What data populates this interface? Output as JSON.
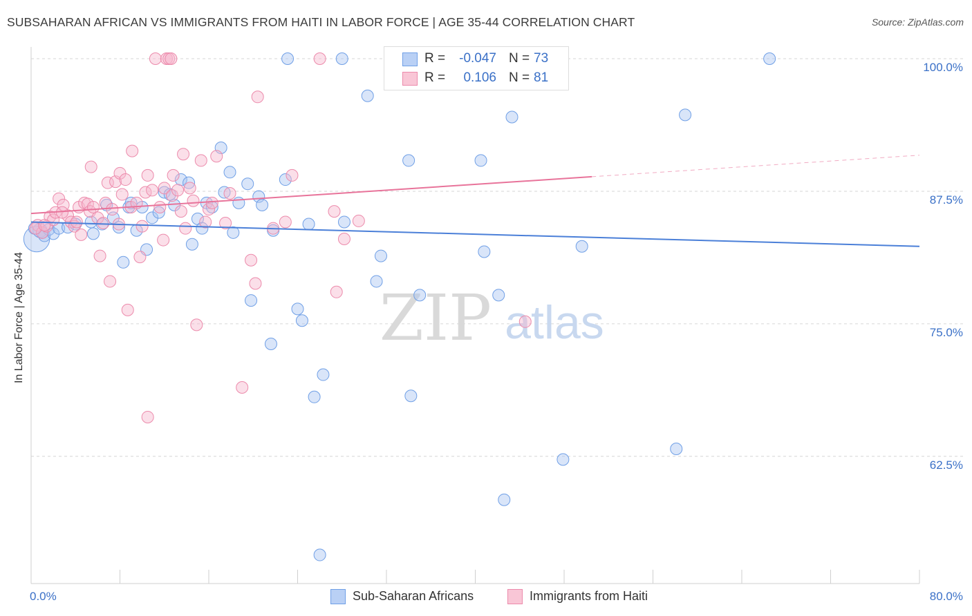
{
  "header": {
    "title": "SUBSAHARAN AFRICAN VS IMMIGRANTS FROM HAITI IN LABOR FORCE | AGE 35-44 CORRELATION CHART",
    "source": "Source: ZipAtlas.com"
  },
  "watermark": {
    "zip": "ZIP",
    "atlas": "atlas"
  },
  "stats": [
    {
      "r_label": "R =",
      "r_value": "-0.047",
      "n_label": "N =",
      "n_value": "73",
      "color": "#6f9fe6",
      "fill": "#b9d0f5"
    },
    {
      "r_label": "R =",
      "r_value": "0.106",
      "n_label": "N =",
      "n_value": "81",
      "color": "#ec8aab",
      "fill": "#f9c6d6"
    }
  ],
  "legend": [
    {
      "label": "Sub-Saharan Africans",
      "color": "#6f9fe6",
      "fill": "#b9d0f5"
    },
    {
      "label": "Immigrants from Haiti",
      "color": "#ec8aab",
      "fill": "#f9c6d6"
    }
  ],
  "chart_data": {
    "type": "scatter",
    "title": "SUBSAHARAN AFRICAN VS IMMIGRANTS FROM HAITI IN LABOR FORCE | AGE 35-44 CORRELATION CHART",
    "xlabel": "",
    "ylabel": "In Labor Force | Age 35-44",
    "xlim": [
      0,
      80
    ],
    "ylim": [
      50.5,
      101.5
    ],
    "x_tick_labels": [
      "0.0%",
      "80.0%"
    ],
    "y_ticks": [
      62.5,
      75.0,
      87.5,
      100.0
    ],
    "y_tick_labels": [
      "62.5%",
      "75.0%",
      "87.5%",
      "100.0%"
    ],
    "grid": true,
    "series": [
      {
        "name": "Sub-Saharan Africans",
        "color": "#4a7fd8",
        "trend": {
          "x": [
            0,
            80
          ],
          "y": [
            84.6,
            82.3
          ],
          "dashed_from": null
        },
        "points": [
          [
            0.5,
            83.0,
            2.2
          ],
          [
            0.8,
            83.8,
            1.2
          ],
          [
            1.2,
            83.3,
            1.0
          ],
          [
            1.6,
            83.9,
            1.0
          ],
          [
            2.0,
            83.5,
            1.0
          ],
          [
            2.5,
            84.0,
            1.0
          ],
          [
            3.3,
            84.1,
            1.0
          ],
          [
            4.0,
            84.4,
            1.0
          ],
          [
            5.4,
            84.6,
            1.0
          ],
          [
            5.6,
            83.5,
            1.0
          ],
          [
            6.8,
            86.2,
            1.0
          ],
          [
            7.4,
            85.0,
            1.0
          ],
          [
            7.9,
            84.1,
            1.0
          ],
          [
            8.3,
            80.8,
            1.0
          ],
          [
            8.8,
            86.0,
            1.0
          ],
          [
            9.5,
            83.8,
            1.0
          ],
          [
            10.0,
            86.0,
            1.0
          ],
          [
            10.4,
            82.0,
            1.0
          ],
          [
            10.9,
            85.0,
            1.0
          ],
          [
            11.5,
            85.5,
            1.0
          ],
          [
            12.0,
            87.4,
            1.0
          ],
          [
            12.5,
            87.2,
            1.0
          ],
          [
            12.9,
            86.2,
            1.0
          ],
          [
            13.5,
            88.6,
            1.0
          ],
          [
            14.2,
            88.3,
            1.0
          ],
          [
            14.5,
            82.5,
            1.0
          ],
          [
            15.0,
            84.9,
            1.0
          ],
          [
            15.4,
            84.0,
            1.0
          ],
          [
            15.8,
            86.4,
            1.0
          ],
          [
            16.3,
            86.0,
            1.0
          ],
          [
            17.1,
            91.6,
            1.0
          ],
          [
            17.4,
            87.4,
            1.0
          ],
          [
            17.9,
            89.3,
            1.0
          ],
          [
            18.2,
            83.6,
            1.0
          ],
          [
            18.7,
            86.4,
            1.0
          ],
          [
            19.5,
            88.2,
            1.0
          ],
          [
            19.8,
            77.2,
            1.0
          ],
          [
            20.5,
            87.0,
            1.0
          ],
          [
            20.8,
            86.2,
            1.0
          ],
          [
            21.6,
            73.1,
            1.0
          ],
          [
            21.8,
            83.8,
            1.0
          ],
          [
            22.9,
            88.6,
            1.0
          ],
          [
            23.1,
            100.0,
            1.0
          ],
          [
            24.0,
            76.4,
            1.0
          ],
          [
            24.4,
            75.3,
            1.0
          ],
          [
            25.0,
            84.4,
            1.0
          ],
          [
            25.5,
            68.1,
            1.0
          ],
          [
            26.3,
            70.2,
            1.0
          ],
          [
            26.0,
            53.2,
            1.0
          ],
          [
            28.0,
            100.0,
            1.0
          ],
          [
            28.2,
            84.6,
            1.0
          ],
          [
            30.3,
            96.5,
            1.0
          ],
          [
            31.1,
            79.0,
            1.0
          ],
          [
            31.5,
            81.4,
            1.0
          ],
          [
            33.0,
            100.0,
            1.0
          ],
          [
            34.0,
            90.4,
            1.0
          ],
          [
            34.2,
            68.2,
            1.0
          ],
          [
            35.0,
            77.7,
            1.0
          ],
          [
            37.0,
            100.0,
            1.0
          ],
          [
            40.5,
            90.4,
            1.0
          ],
          [
            40.8,
            81.8,
            1.0
          ],
          [
            42.1,
            77.7,
            1.0
          ],
          [
            42.6,
            58.4,
            1.0
          ],
          [
            43.3,
            94.5,
            1.0
          ],
          [
            47.9,
            62.2,
            1.0
          ],
          [
            49.6,
            82.3,
            1.0
          ],
          [
            58.9,
            94.7,
            1.0
          ],
          [
            58.1,
            63.2,
            1.0
          ],
          [
            66.5,
            100.0,
            1.0
          ],
          [
            0.3,
            84.0,
            1.0
          ],
          [
            1.0,
            83.6,
            1.0
          ],
          [
            6.4,
            84.4,
            1.0
          ],
          [
            9.0,
            86.4,
            1.0
          ]
        ]
      },
      {
        "name": "Immigrants from Haiti",
        "color": "#e8739a",
        "trend": {
          "x": [
            0,
            80
          ],
          "y": [
            85.4,
            90.9
          ],
          "dashed_from": 50.5
        },
        "points": [
          [
            0.6,
            84.3,
            1.0
          ],
          [
            1.0,
            83.6,
            1.0
          ],
          [
            1.4,
            84.2,
            1.0
          ],
          [
            1.7,
            85.1,
            1.0
          ],
          [
            2.0,
            84.8,
            1.0
          ],
          [
            2.2,
            85.5,
            1.0
          ],
          [
            2.5,
            86.8,
            1.0
          ],
          [
            2.9,
            86.2,
            1.0
          ],
          [
            3.3,
            85.2,
            1.0
          ],
          [
            3.6,
            84.6,
            1.0
          ],
          [
            3.9,
            84.2,
            1.0
          ],
          [
            4.3,
            86.0,
            1.0
          ],
          [
            4.5,
            83.4,
            1.0
          ],
          [
            4.8,
            86.4,
            1.0
          ],
          [
            5.1,
            86.3,
            1.0
          ],
          [
            5.3,
            85.6,
            1.0
          ],
          [
            5.6,
            86.0,
            1.0
          ],
          [
            5.4,
            89.8,
            1.0
          ],
          [
            6.0,
            85.0,
            1.0
          ],
          [
            6.2,
            81.4,
            1.0
          ],
          [
            6.5,
            84.5,
            1.0
          ],
          [
            6.7,
            86.4,
            1.0
          ],
          [
            6.9,
            88.3,
            1.0
          ],
          [
            7.1,
            79.0,
            1.0
          ],
          [
            7.3,
            85.8,
            1.0
          ],
          [
            7.6,
            88.4,
            1.0
          ],
          [
            7.9,
            84.4,
            1.0
          ],
          [
            8.0,
            89.2,
            1.0
          ],
          [
            8.2,
            87.2,
            1.0
          ],
          [
            8.5,
            88.6,
            1.0
          ],
          [
            8.7,
            76.3,
            1.0
          ],
          [
            9.0,
            86.0,
            1.0
          ],
          [
            9.1,
            91.3,
            1.0
          ],
          [
            9.5,
            86.4,
            1.0
          ],
          [
            9.8,
            81.3,
            1.0
          ],
          [
            10.0,
            84.2,
            1.0
          ],
          [
            10.3,
            87.4,
            1.0
          ],
          [
            10.5,
            89.0,
            1.0
          ],
          [
            10.5,
            66.2,
            1.0
          ],
          [
            10.9,
            87.6,
            1.0
          ],
          [
            11.2,
            100.0,
            1.0
          ],
          [
            11.6,
            86.0,
            1.0
          ],
          [
            11.9,
            82.9,
            1.0
          ],
          [
            12.0,
            87.8,
            1.0
          ],
          [
            12.2,
            100.0,
            1.0
          ],
          [
            12.4,
            100.0,
            1.0
          ],
          [
            12.6,
            100.0,
            1.0
          ],
          [
            12.7,
            87.1,
            1.0
          ],
          [
            12.8,
            89.0,
            1.0
          ],
          [
            13.2,
            87.6,
            1.0
          ],
          [
            13.5,
            85.6,
            1.0
          ],
          [
            13.7,
            91.0,
            1.0
          ],
          [
            13.9,
            84.0,
            1.0
          ],
          [
            14.3,
            87.8,
            1.0
          ],
          [
            14.6,
            86.6,
            1.0
          ],
          [
            14.9,
            74.9,
            1.0
          ],
          [
            15.3,
            90.4,
            1.0
          ],
          [
            15.7,
            84.6,
            1.0
          ],
          [
            16.0,
            85.8,
            1.0
          ],
          [
            16.3,
            86.4,
            1.0
          ],
          [
            16.7,
            90.8,
            1.0
          ],
          [
            17.5,
            84.5,
            1.0
          ],
          [
            17.9,
            87.3,
            1.0
          ],
          [
            19.0,
            69.0,
            1.0
          ],
          [
            19.8,
            81.0,
            1.0
          ],
          [
            20.2,
            78.8,
            1.0
          ],
          [
            20.4,
            96.4,
            1.0
          ],
          [
            21.8,
            84.0,
            1.0
          ],
          [
            22.9,
            84.6,
            1.0
          ],
          [
            23.5,
            89.0,
            1.0
          ],
          [
            26.0,
            100.0,
            1.0
          ],
          [
            27.3,
            85.6,
            1.0
          ],
          [
            27.5,
            78.0,
            1.0
          ],
          [
            28.2,
            83.0,
            1.0
          ],
          [
            29.5,
            84.7,
            1.0
          ],
          [
            33.0,
            100.0,
            1.0
          ],
          [
            44.5,
            75.2,
            1.0
          ],
          [
            0.4,
            84.0,
            1.0
          ],
          [
            1.2,
            84.3,
            1.0
          ],
          [
            2.8,
            85.5,
            1.0
          ],
          [
            4.1,
            84.6,
            1.0
          ]
        ]
      }
    ]
  }
}
